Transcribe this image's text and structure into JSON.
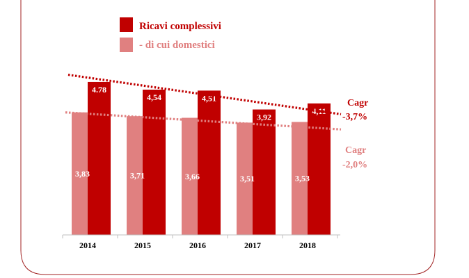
{
  "colors": {
    "primary": "#c00000",
    "secondary": "#e08080",
    "frame": "#a02020"
  },
  "legend": {
    "primary_label": "Ricavi complessivi",
    "secondary_label": "- di cui domestici"
  },
  "cagr": {
    "primary_title": "Cagr",
    "primary_value": "-3,7%",
    "secondary_title": "Cagr",
    "secondary_value": "-2,0%"
  },
  "chart_data": {
    "type": "bar",
    "categories": [
      "2014",
      "2015",
      "2016",
      "2017",
      "2018"
    ],
    "series": [
      {
        "name": "Ricavi complessivi",
        "values": [
          4.78,
          4.54,
          4.51,
          3.92,
          4.11
        ],
        "labels": [
          "4.78",
          "4,54",
          "4,51",
          "3,92",
          "4,11"
        ]
      },
      {
        "name": "- di cui domestici",
        "values": [
          3.83,
          3.71,
          3.66,
          3.51,
          3.53
        ],
        "labels": [
          "3,83",
          "3,71",
          "3,66",
          "3,51",
          "3,53"
        ]
      }
    ],
    "ylim": [
      0,
      5.3
    ],
    "grid": false,
    "legend_position": "top-center",
    "trendlines": [
      {
        "series": "Ricavi complessivi",
        "style": "dotted",
        "annotation": "Cagr -3,7%"
      },
      {
        "series": "- di cui domestici",
        "style": "dotted",
        "annotation": "Cagr -2,0%"
      }
    ]
  }
}
